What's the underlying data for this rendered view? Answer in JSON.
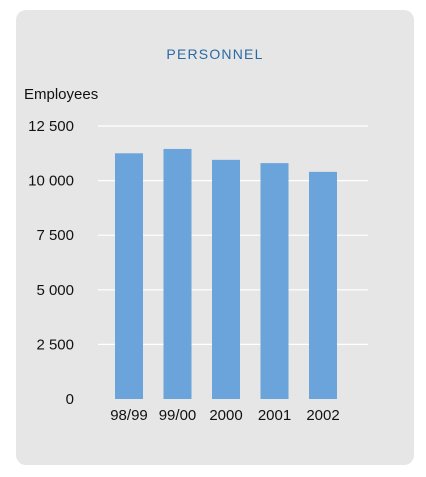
{
  "panel": {
    "title": "PERSONNEL"
  },
  "colors": {
    "panel_bg": "#e6e6e6",
    "bar": "#6aa4db",
    "gridline": "#ffffff",
    "title": "#2a6aa3"
  },
  "chart_data": {
    "type": "bar",
    "title": "PERSONNEL",
    "ylabel": "Employees",
    "xlabel": "",
    "categories": [
      "98/99",
      "99/00",
      "2000",
      "2001",
      "2002"
    ],
    "values": [
      11250,
      11450,
      10950,
      10800,
      10400
    ],
    "ylim": [
      0,
      12500
    ],
    "yticks": [
      0,
      2500,
      5000,
      7500,
      10000,
      12500
    ],
    "ytick_labels": [
      "0",
      "2 500",
      "5 000",
      "7 500",
      "10 000",
      "12 500"
    ],
    "grid": true
  }
}
